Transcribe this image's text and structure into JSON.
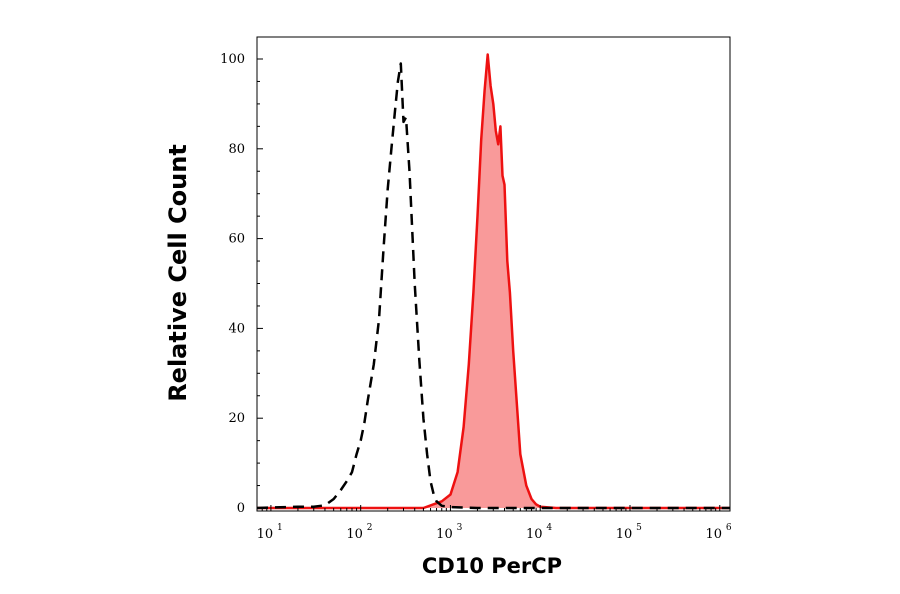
{
  "chart_data": {
    "type": "area",
    "title": "",
    "xlabel": "CD10 PerCP",
    "ylabel": "Relative Cell Count",
    "xscale": "log",
    "xlim": [
      7,
      1300000
    ],
    "ylim": [
      0,
      104
    ],
    "x_ticks": [
      {
        "base": "10",
        "exp": "1",
        "value": 10
      },
      {
        "base": "10",
        "exp": "2",
        "value": 100
      },
      {
        "base": "10",
        "exp": "3",
        "value": 1000
      },
      {
        "base": "10",
        "exp": "4",
        "value": 10000
      },
      {
        "base": "10",
        "exp": "5",
        "value": 100000
      },
      {
        "base": "10",
        "exp": "6",
        "value": 1000000
      }
    ],
    "y_ticks": [
      0,
      20,
      40,
      60,
      80,
      100
    ],
    "grid": false,
    "legend": "none",
    "series": [
      {
        "style": "dashed",
        "color": "#000000",
        "fill": "none",
        "x": [
          7,
          20,
          30,
          40,
          50,
          60,
          70,
          80,
          90,
          100,
          110,
          120,
          140,
          160,
          180,
          200,
          220,
          240,
          260,
          280,
          300,
          320,
          350,
          400,
          450,
          500,
          550,
          600,
          650,
          700,
          800,
          1000,
          2000,
          1300000
        ],
        "values": [
          0,
          0.3,
          0.3,
          0.6,
          2,
          4,
          6,
          8,
          12,
          15,
          19,
          24,
          32,
          42,
          58,
          71,
          80,
          88,
          95,
          99,
          86,
          87,
          75,
          50,
          33,
          20,
          12,
          6,
          3,
          1.5,
          0.5,
          0.2,
          0,
          0
        ]
      },
      {
        "style": "solid",
        "color": "#ee1111",
        "fill": "#f99a9a",
        "x": [
          7,
          500,
          800,
          1000,
          1200,
          1400,
          1600,
          1800,
          2000,
          2200,
          2400,
          2600,
          2800,
          3000,
          3200,
          3400,
          3600,
          3800,
          4000,
          4300,
          4600,
          5000,
          5500,
          6000,
          7000,
          8000,
          9000,
          10000,
          15000,
          1300000
        ],
        "values": [
          0,
          0,
          1.5,
          3,
          8,
          18,
          32,
          48,
          65,
          82,
          93,
          101,
          94,
          90,
          84,
          81,
          85,
          74,
          72,
          55,
          48,
          35,
          23,
          12,
          5,
          2,
          0.8,
          0.3,
          0,
          0
        ]
      }
    ]
  }
}
